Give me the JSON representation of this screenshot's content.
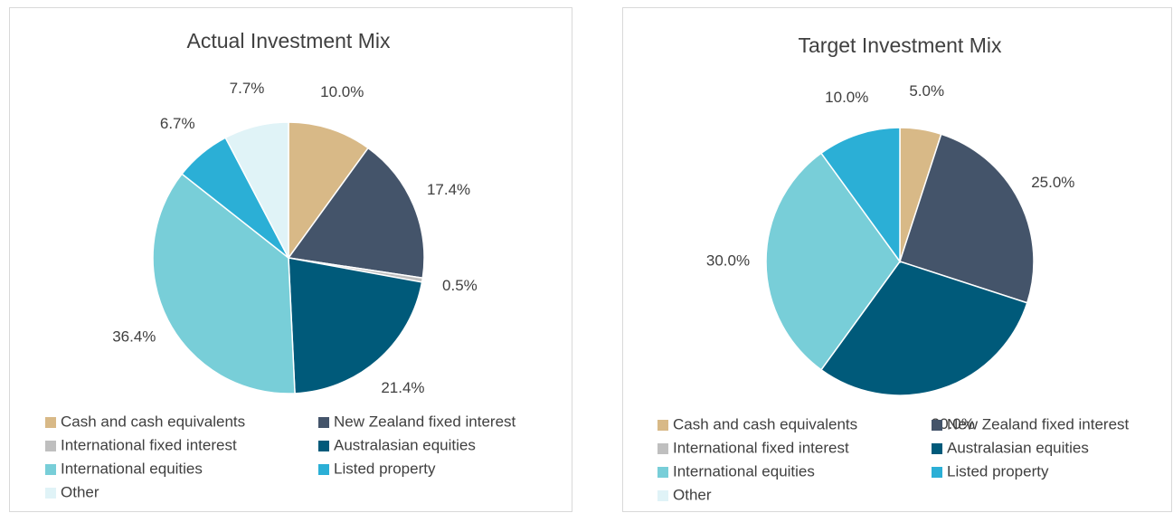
{
  "chart_data": [
    {
      "type": "pie",
      "title": "Actual Investment Mix",
      "categories": [
        "Cash and cash equivalents",
        "New Zealand fixed interest",
        "International fixed interest",
        "Australasian equities",
        "International equities",
        "Listed property",
        "Other"
      ],
      "values": [
        10.0,
        17.4,
        0.5,
        21.4,
        36.4,
        6.7,
        7.7
      ],
      "value_labels": [
        "10.0%",
        "17.4%",
        "0.5%",
        "21.4%",
        "36.4%",
        "6.7%",
        "7.7%"
      ],
      "colors": [
        "#d8b987",
        "#44546a",
        "#bfbfbf",
        "#005a7a",
        "#78ced8",
        "#2bafd6",
        "#e0f3f7"
      ]
    },
    {
      "type": "pie",
      "title": "Target Investment Mix",
      "categories": [
        "Cash and cash equivalents",
        "New Zealand fixed interest",
        "International fixed interest",
        "Australasian equities",
        "International equities",
        "Listed property",
        "Other"
      ],
      "values": [
        5.0,
        25.0,
        0,
        30.0,
        30.0,
        10.0,
        0
      ],
      "value_labels": [
        "5.0%",
        "25.0%",
        null,
        "30.0%",
        "30.0%",
        "10.0%",
        null
      ],
      "colors": [
        "#d8b987",
        "#44546a",
        "#bfbfbf",
        "#005a7a",
        "#78ced8",
        "#2bafd6",
        "#e0f3f7"
      ]
    }
  ]
}
